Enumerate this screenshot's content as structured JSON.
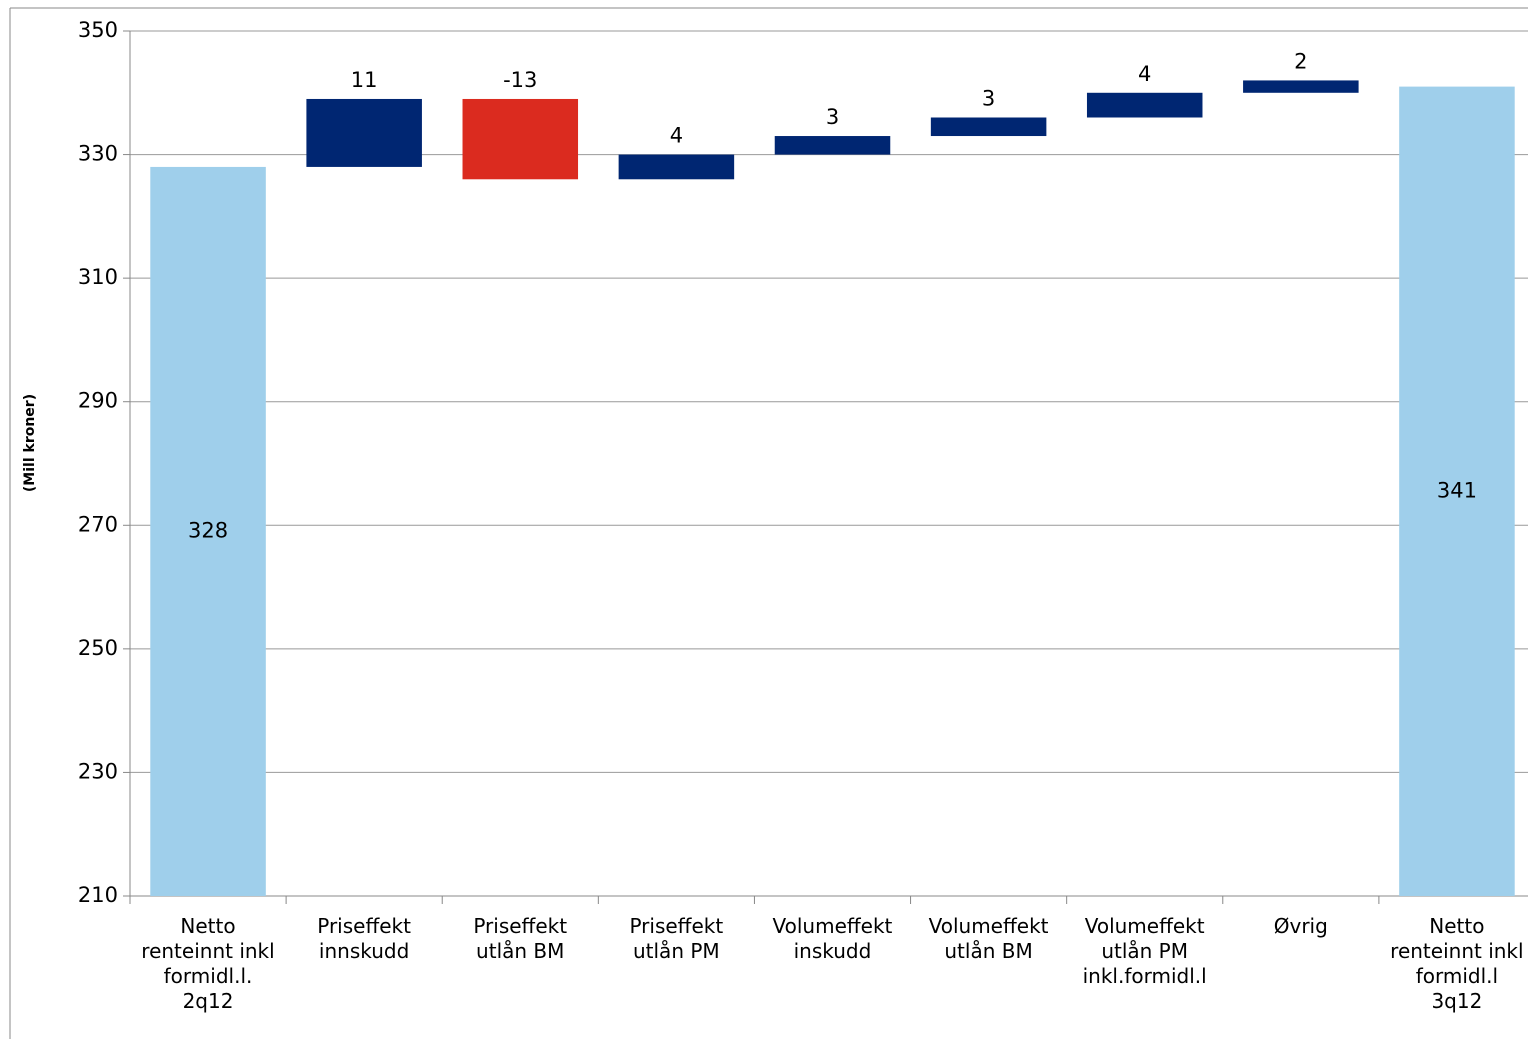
{
  "chart_data": {
    "type": "waterfall",
    "y_label": "(Mill kroner)",
    "categories": [
      "Netto\nrenteinnt inkl\nformidl.l.\n2q12",
      "Priseffekt\ninnskudd",
      "Priseffekt\nutlån BM",
      "Priseffekt\nutlån PM",
      "Volumeffekt\ninskudd",
      "Volumeffekt\nutlån BM",
      "Volumeffekt\nutlån PM\ninkl.formidl.l",
      "Øvrig",
      "Netto\nrenteinnt inkl\nformidl.l\n3q12"
    ],
    "values": [
      328,
      11,
      -13,
      4,
      3,
      3,
      4,
      2,
      341
    ],
    "measure": [
      "absolute",
      "relative",
      "relative",
      "relative",
      "relative",
      "relative",
      "relative",
      "relative",
      "absolute"
    ],
    "colors": {
      "total": "#9fcfeb",
      "increase": "#002672",
      "decrease": "#db2b1f"
    },
    "ylim": [
      210,
      350
    ],
    "yticks": [
      210,
      230,
      250,
      270,
      290,
      310,
      330,
      350
    ],
    "grid": true
  }
}
